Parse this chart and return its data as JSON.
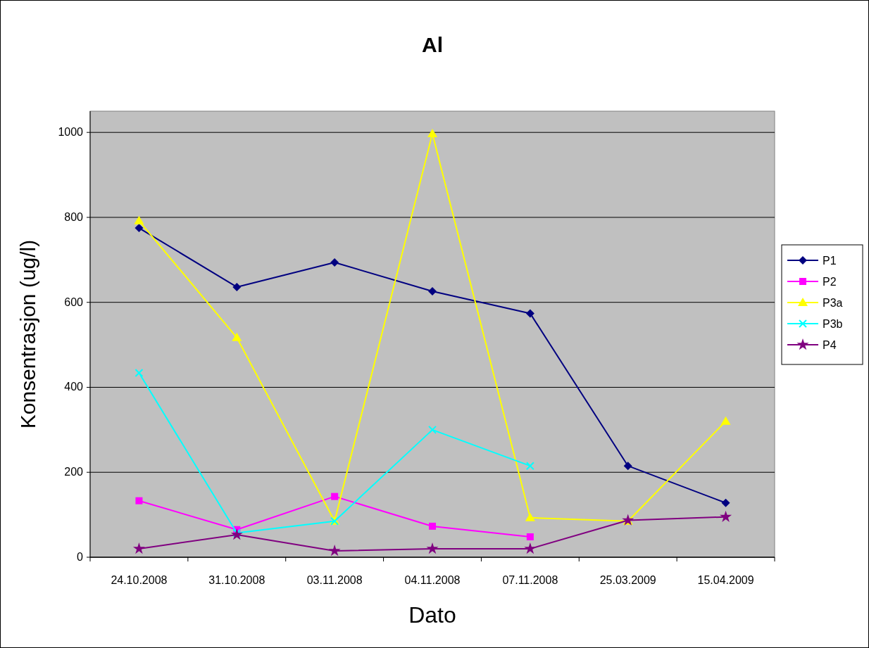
{
  "chart_data": {
    "type": "line",
    "title": "Al",
    "xlabel": "Dato",
    "ylabel": "Konsentrasjon (ug/l)",
    "categories": [
      "24.10.2008",
      "31.10.2008",
      "03.11.2008",
      "04.11.2008",
      "07.11.2008",
      "25.03.2009",
      "15.04.2009"
    ],
    "ylim": [
      0,
      1050
    ],
    "yticks": [
      0,
      200,
      400,
      600,
      800,
      1000
    ],
    "grid": "y",
    "legend": "right",
    "series": [
      {
        "name": "P1",
        "color": "#000080",
        "marker": "diamond",
        "values": [
          775,
          636,
          694,
          626,
          574,
          215,
          128
        ]
      },
      {
        "name": "P2",
        "color": "#ff00ff",
        "marker": "square",
        "values": [
          133,
          65,
          143,
          73,
          48,
          null,
          null
        ]
      },
      {
        "name": "P3a",
        "color": "#ffff00",
        "marker": "triangle",
        "values": [
          792,
          517,
          85,
          997,
          93,
          85,
          320
        ]
      },
      {
        "name": "P3b",
        "color": "#00ffff",
        "marker": "cross",
        "values": [
          434,
          57,
          85,
          300,
          215,
          null,
          null
        ]
      },
      {
        "name": "P4",
        "color": "#800080",
        "marker": "star",
        "values": [
          20,
          53,
          15,
          20,
          20,
          87,
          95
        ]
      }
    ]
  }
}
